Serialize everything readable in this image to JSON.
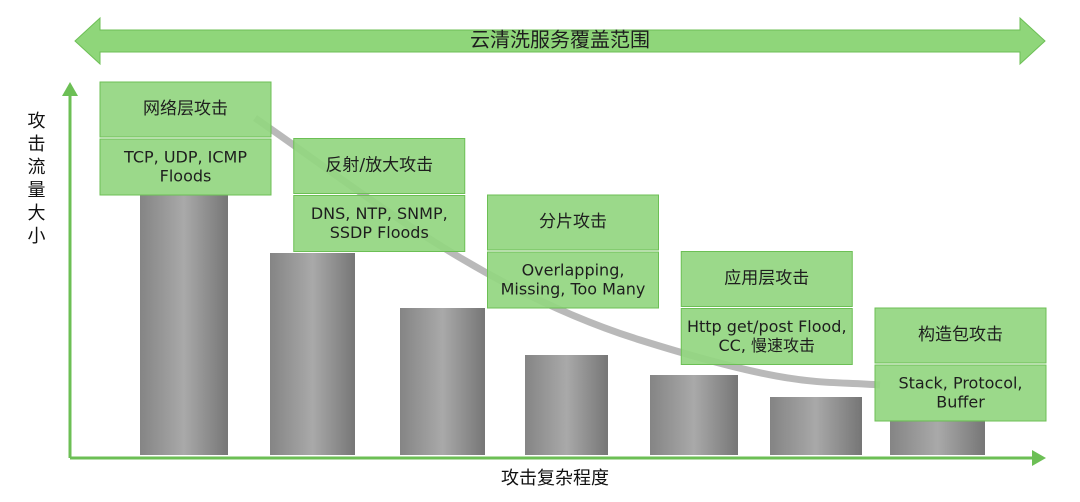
{
  "banner": "云清洗服务覆盖范围",
  "y_axis_label": "攻击流量大小",
  "x_axis_label": "攻击复杂程度",
  "stages": [
    {
      "title": "网络层攻击",
      "details": [
        "TCP, UDP, ICMP",
        "Floods"
      ]
    },
    {
      "title": "反射/放大攻击",
      "details": [
        "DNS, NTP, SNMP,",
        "SSDP Floods"
      ]
    },
    {
      "title": "分片攻击",
      "details": [
        "Overlapping,",
        "Missing, Too Many"
      ]
    },
    {
      "title": "应用层攻击",
      "details": [
        "Http get/post Flood,",
        "CC, 慢速攻击"
      ]
    },
    {
      "title": "构造包攻击",
      "details": [
        "Stack, Protocol,",
        "Buffer"
      ]
    }
  ]
}
